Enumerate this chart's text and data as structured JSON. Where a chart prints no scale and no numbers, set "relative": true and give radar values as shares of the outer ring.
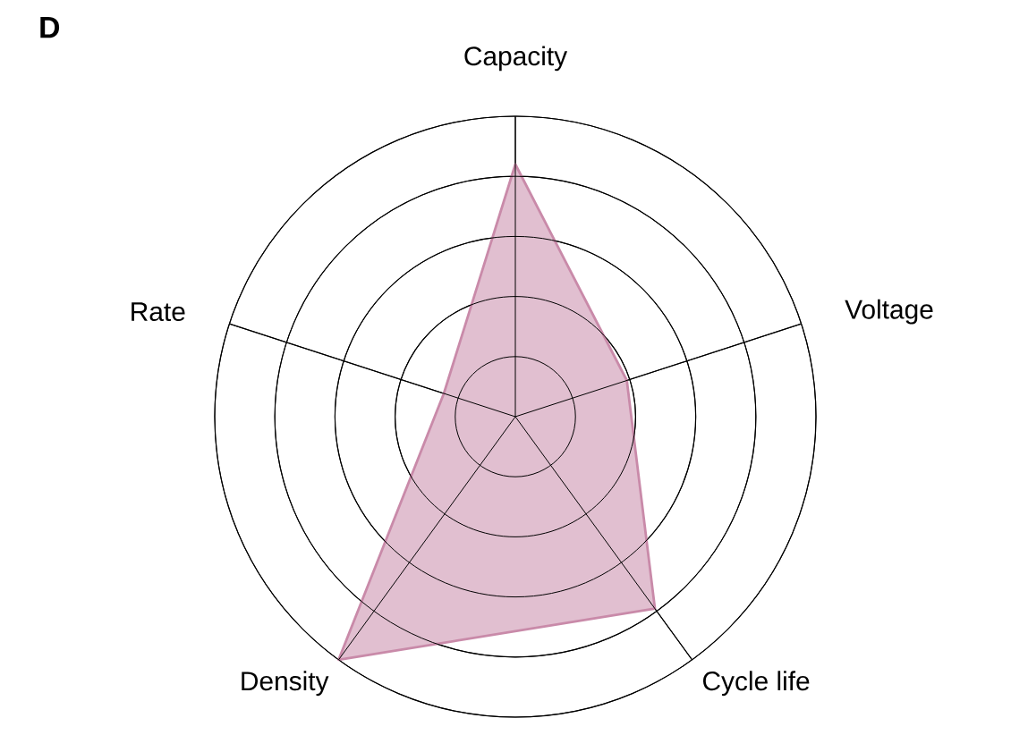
{
  "chart_data": {
    "type": "radar",
    "title": "D",
    "relative": true,
    "grid": true,
    "categories": [
      "Capacity",
      "Voltage",
      "Cycle life",
      "Density",
      "Rate"
    ],
    "series": [
      {
        "color": "#c98aa9",
        "values": [
          0.84,
          0.39,
          0.79,
          1.0,
          0.25
        ]
      }
    ]
  }
}
